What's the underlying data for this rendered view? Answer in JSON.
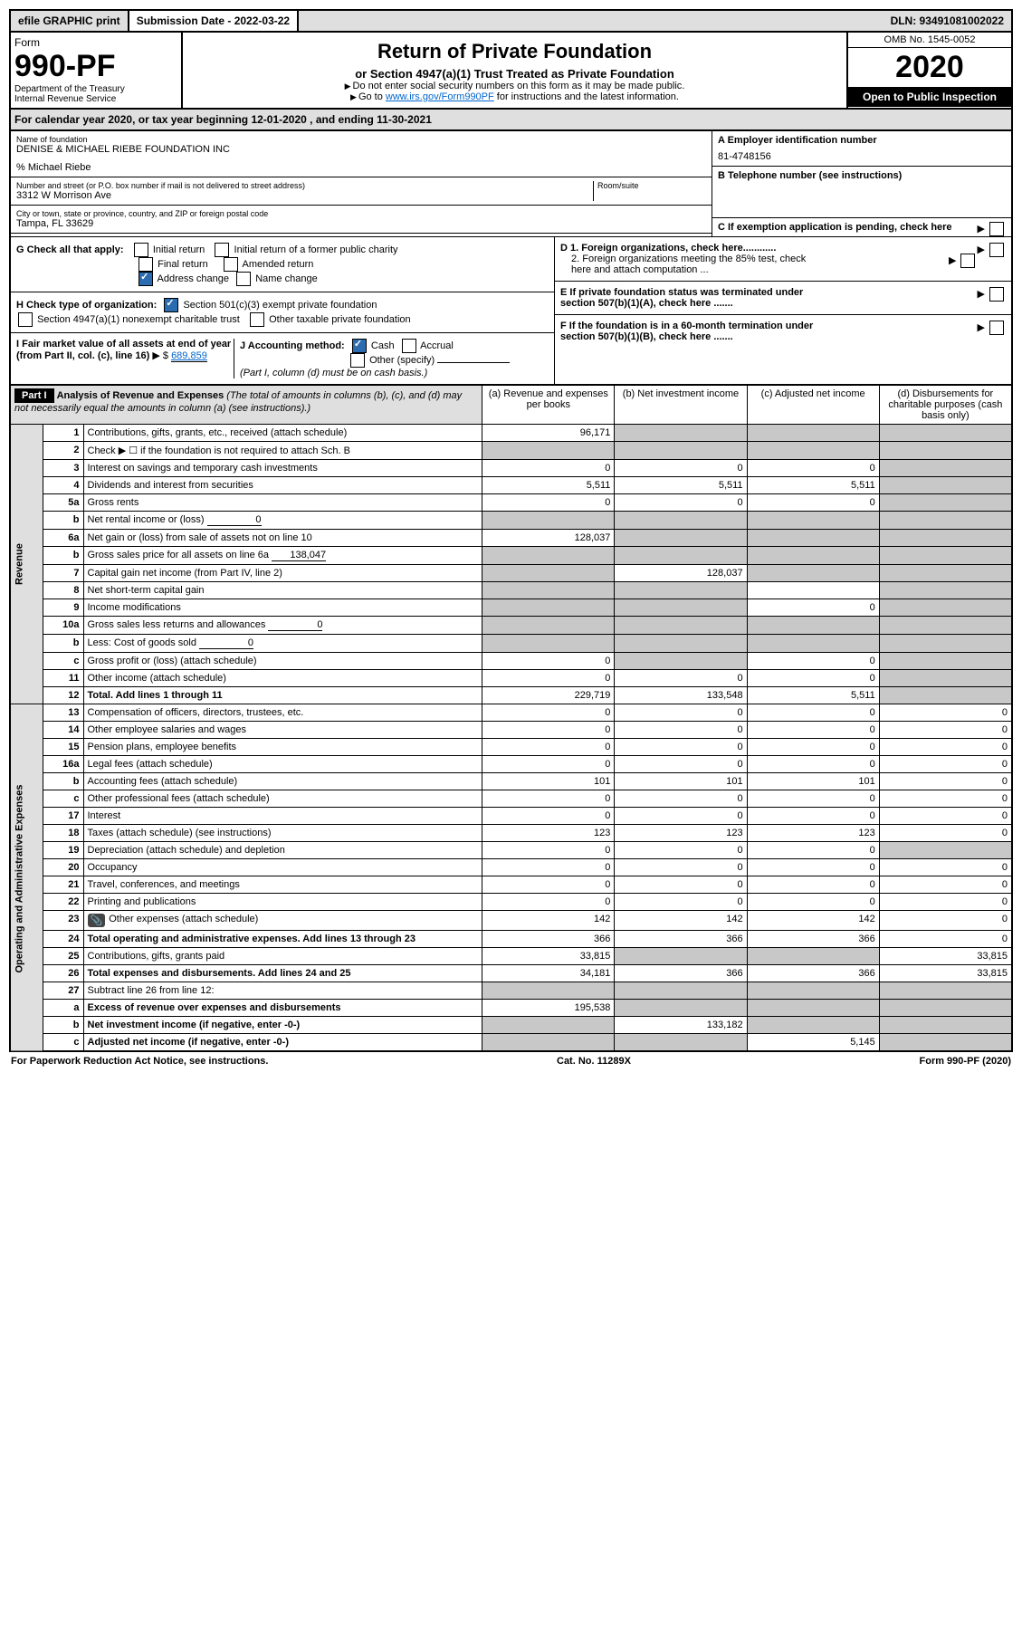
{
  "top": {
    "efile": "efile GRAPHIC print",
    "subdate_label": "Submission Date - 2022-03-22",
    "dln": "DLN: 93491081002022"
  },
  "header": {
    "form_label": "Form",
    "form_no": "990-PF",
    "dept": "Department of the Treasury",
    "irs": "Internal Revenue Service",
    "title": "Return of Private Foundation",
    "subtitle": "or Section 4947(a)(1) Trust Treated as Private Foundation",
    "note1": "Do not enter social security numbers on this form as it may be made public.",
    "note2_pre": "Go to ",
    "note2_link": "www.irs.gov/Form990PF",
    "note2_post": " for instructions and the latest information.",
    "omb": "OMB No. 1545-0052",
    "year": "2020",
    "open": "Open to Public Inspection"
  },
  "calyear": "For calendar year 2020, or tax year beginning 12-01-2020            , and ending 11-30-2021",
  "org": {
    "name_label": "Name of foundation",
    "name": "DENISE & MICHAEL RIEBE FOUNDATION INC",
    "care_of": "% Michael Riebe",
    "addr_label": "Number and street (or P.O. box number if mail is not delivered to street address)",
    "addr": "3312 W Morrison Ave",
    "room_label": "Room/suite",
    "city_label": "City or town, state or province, country, and ZIP or foreign postal code",
    "city": "Tampa, FL  33629",
    "ein_label": "A Employer identification number",
    "ein": "81-4748156",
    "phone_label": "B Telephone number (see instructions)",
    "c_label": "C If exemption application is pending, check here"
  },
  "checks": {
    "g_label": "G Check all that apply:",
    "initial": "Initial return",
    "initial_former": "Initial return of a former public charity",
    "final": "Final return",
    "amended": "Amended return",
    "addr_change": "Address change",
    "name_change": "Name change",
    "h_label": "H Check type of organization:",
    "h_501c3": "Section 501(c)(3) exempt private foundation",
    "h_4947": "Section 4947(a)(1) nonexempt charitable trust",
    "h_other": "Other taxable private foundation",
    "i_label": "I Fair market value of all assets at end of year (from Part II, col. (c), line 16)",
    "i_value": "689,859",
    "j_label": "J Accounting method:",
    "j_cash": "Cash",
    "j_accrual": "Accrual",
    "j_other": "Other (specify)",
    "j_note": "(Part I, column (d) must be on cash basis.)",
    "d1": "D 1. Foreign organizations, check here............",
    "d2": "2. Foreign organizations meeting the 85% test, check here and attach computation ...",
    "e_label": "E  If private foundation status was terminated under section 507(b)(1)(A), check here .......",
    "f_label": "F  If the foundation is in a 60-month termination under section 507(b)(1)(B), check here ......."
  },
  "part1": {
    "header": "Part I",
    "title": "Analysis of Revenue and Expenses",
    "title_note": "(The total of amounts in columns (b), (c), and (d) may not necessarily equal the amounts in column (a) (see instructions).)",
    "col_a": "(a)  Revenue and expenses per books",
    "col_b": "(b)  Net investment income",
    "col_c": "(c)  Adjusted net income",
    "col_d": "(d)  Disbursements for charitable purposes (cash basis only)"
  },
  "side": {
    "revenue": "Revenue",
    "expenses": "Operating and Administrative Expenses"
  },
  "rows": [
    {
      "n": "1",
      "desc": "Contributions, gifts, grants, etc., received (attach schedule)",
      "a": "96,171",
      "b": "",
      "c": "",
      "d": "",
      "b_shade": true,
      "c_shade": true,
      "d_shade": true
    },
    {
      "n": "2",
      "desc": "Check ▶ ☐ if the foundation is not required to attach Sch. B",
      "a": "",
      "b": "",
      "c": "",
      "d": "",
      "a_shade": true,
      "b_shade": true,
      "c_shade": true,
      "d_shade": true
    },
    {
      "n": "3",
      "desc": "Interest on savings and temporary cash investments",
      "a": "0",
      "b": "0",
      "c": "0",
      "d": "",
      "d_shade": true
    },
    {
      "n": "4",
      "desc": "Dividends and interest from securities",
      "a": "5,511",
      "b": "5,511",
      "c": "5,511",
      "d": "",
      "d_shade": true
    },
    {
      "n": "5a",
      "desc": "Gross rents",
      "a": "0",
      "b": "0",
      "c": "0",
      "d": "",
      "d_shade": true
    },
    {
      "n": "b",
      "desc": "Net rental income or (loss)",
      "inline": "0",
      "a": "",
      "b": "",
      "c": "",
      "d": "",
      "a_shade": true,
      "b_shade": true,
      "c_shade": true,
      "d_shade": true
    },
    {
      "n": "6a",
      "desc": "Net gain or (loss) from sale of assets not on line 10",
      "a": "128,037",
      "b": "",
      "c": "",
      "d": "",
      "b_shade": true,
      "c_shade": true,
      "d_shade": true
    },
    {
      "n": "b",
      "desc": "Gross sales price for all assets on line 6a",
      "inline": "138,047",
      "a": "",
      "b": "",
      "c": "",
      "d": "",
      "a_shade": true,
      "b_shade": true,
      "c_shade": true,
      "d_shade": true
    },
    {
      "n": "7",
      "desc": "Capital gain net income (from Part IV, line 2)",
      "a": "",
      "b": "128,037",
      "c": "",
      "d": "",
      "a_shade": true,
      "c_shade": true,
      "d_shade": true
    },
    {
      "n": "8",
      "desc": "Net short-term capital gain",
      "a": "",
      "b": "",
      "c": "",
      "d": "",
      "a_shade": true,
      "b_shade": true,
      "d_shade": true
    },
    {
      "n": "9",
      "desc": "Income modifications",
      "a": "",
      "b": "",
      "c": "0",
      "d": "",
      "a_shade": true,
      "b_shade": true,
      "d_shade": true
    },
    {
      "n": "10a",
      "desc": "Gross sales less returns and allowances",
      "inline": "0",
      "a": "",
      "b": "",
      "c": "",
      "d": "",
      "a_shade": true,
      "b_shade": true,
      "c_shade": true,
      "d_shade": true
    },
    {
      "n": "b",
      "desc": "Less: Cost of goods sold",
      "inline": "0",
      "a": "",
      "b": "",
      "c": "",
      "d": "",
      "a_shade": true,
      "b_shade": true,
      "c_shade": true,
      "d_shade": true
    },
    {
      "n": "c",
      "desc": "Gross profit or (loss) (attach schedule)",
      "a": "0",
      "b": "",
      "c": "0",
      "d": "",
      "b_shade": true,
      "d_shade": true
    },
    {
      "n": "11",
      "desc": "Other income (attach schedule)",
      "a": "0",
      "b": "0",
      "c": "0",
      "d": "",
      "d_shade": true
    },
    {
      "n": "12",
      "desc": "Total. Add lines 1 through 11",
      "a": "229,719",
      "b": "133,548",
      "c": "5,511",
      "d": "",
      "bold": true,
      "d_shade": true
    },
    {
      "n": "13",
      "desc": "Compensation of officers, directors, trustees, etc.",
      "a": "0",
      "b": "0",
      "c": "0",
      "d": "0"
    },
    {
      "n": "14",
      "desc": "Other employee salaries and wages",
      "a": "0",
      "b": "0",
      "c": "0",
      "d": "0"
    },
    {
      "n": "15",
      "desc": "Pension plans, employee benefits",
      "a": "0",
      "b": "0",
      "c": "0",
      "d": "0"
    },
    {
      "n": "16a",
      "desc": "Legal fees (attach schedule)",
      "a": "0",
      "b": "0",
      "c": "0",
      "d": "0"
    },
    {
      "n": "b",
      "desc": "Accounting fees (attach schedule)",
      "a": "101",
      "b": "101",
      "c": "101",
      "d": "0"
    },
    {
      "n": "c",
      "desc": "Other professional fees (attach schedule)",
      "a": "0",
      "b": "0",
      "c": "0",
      "d": "0"
    },
    {
      "n": "17",
      "desc": "Interest",
      "a": "0",
      "b": "0",
      "c": "0",
      "d": "0"
    },
    {
      "n": "18",
      "desc": "Taxes (attach schedule) (see instructions)",
      "a": "123",
      "b": "123",
      "c": "123",
      "d": "0"
    },
    {
      "n": "19",
      "desc": "Depreciation (attach schedule) and depletion",
      "a": "0",
      "b": "0",
      "c": "0",
      "d": "",
      "d_shade": true
    },
    {
      "n": "20",
      "desc": "Occupancy",
      "a": "0",
      "b": "0",
      "c": "0",
      "d": "0"
    },
    {
      "n": "21",
      "desc": "Travel, conferences, and meetings",
      "a": "0",
      "b": "0",
      "c": "0",
      "d": "0"
    },
    {
      "n": "22",
      "desc": "Printing and publications",
      "a": "0",
      "b": "0",
      "c": "0",
      "d": "0"
    },
    {
      "n": "23",
      "desc": "Other expenses (attach schedule)",
      "a": "142",
      "b": "142",
      "c": "142",
      "d": "0",
      "icon": true
    },
    {
      "n": "24",
      "desc": "Total operating and administrative expenses. Add lines 13 through 23",
      "a": "366",
      "b": "366",
      "c": "366",
      "d": "0",
      "bold": true
    },
    {
      "n": "25",
      "desc": "Contributions, gifts, grants paid",
      "a": "33,815",
      "b": "",
      "c": "",
      "d": "33,815",
      "b_shade": true,
      "c_shade": true
    },
    {
      "n": "26",
      "desc": "Total expenses and disbursements. Add lines 24 and 25",
      "a": "34,181",
      "b": "366",
      "c": "366",
      "d": "33,815",
      "bold": true
    },
    {
      "n": "27",
      "desc": "Subtract line 26 from line 12:",
      "a": "",
      "b": "",
      "c": "",
      "d": "",
      "a_shade": true,
      "b_shade": true,
      "c_shade": true,
      "d_shade": true
    },
    {
      "n": "a",
      "desc": "Excess of revenue over expenses and disbursements",
      "a": "195,538",
      "b": "",
      "c": "",
      "d": "",
      "bold": true,
      "b_shade": true,
      "c_shade": true,
      "d_shade": true
    },
    {
      "n": "b",
      "desc": "Net investment income (if negative, enter -0-)",
      "a": "",
      "b": "133,182",
      "c": "",
      "d": "",
      "bold": true,
      "a_shade": true,
      "c_shade": true,
      "d_shade": true
    },
    {
      "n": "c",
      "desc": "Adjusted net income (if negative, enter -0-)",
      "a": "",
      "b": "",
      "c": "5,145",
      "d": "",
      "bold": true,
      "a_shade": true,
      "b_shade": true,
      "d_shade": true
    }
  ],
  "footer": {
    "left": "For Paperwork Reduction Act Notice, see instructions.",
    "center": "Cat. No. 11289X",
    "right": "Form 990-PF (2020)"
  }
}
